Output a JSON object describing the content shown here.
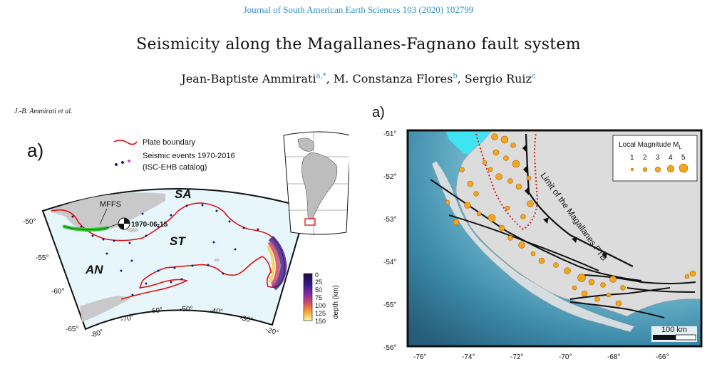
{
  "journal": "Journal of South American Earth Sciences 103 (2020) 102799",
  "title": "Seismicity along the Magallanes-Fagnano fault system",
  "authors": {
    "a1": "Jean-Baptiste Ammirati",
    "a1_sup": "a,",
    "a1_star": "*",
    "sep1": ", ",
    "a2": "M. Constanza Flores",
    "a2_sup": "b",
    "sep2": ", ",
    "a3": "Sergio Ruiz",
    "a3_sup": "c"
  },
  "running_header": "J.-B. Ammirati et al.",
  "left_figure": {
    "panel_label": "a)",
    "legend": {
      "plate_boundary": "Plate boundary",
      "events_line1": "Seismic events 1970-2016",
      "events_line2": "(ISC-EHB catalog)"
    },
    "labels": {
      "sa": "SA",
      "st": "ST",
      "an": "AN",
      "mffs": "MFFS",
      "event_date": "1970-06-15"
    },
    "lat_ticks": [
      "-50°",
      "-55°",
      "-60°",
      "-65°"
    ],
    "lon_ticks": [
      "-80°",
      "-70°",
      "-60°",
      "-50°",
      "-40°",
      "-30°",
      "-20°"
    ],
    "colorbar": {
      "ticks": [
        "0",
        "25",
        "50",
        "75",
        "100",
        "125",
        "150"
      ],
      "label": "depth (km)"
    },
    "colors": {
      "ocean": "#e6f6fb",
      "land": "#c9c9c9",
      "plate_boundary": "#e01010",
      "fault": "#22c422"
    }
  },
  "right_figure": {
    "panel_label": "a)",
    "lat_ticks": [
      "-51°",
      "-52°",
      "-53°",
      "-54°",
      "-55°",
      "-56°"
    ],
    "lon_ticks": [
      "-76°",
      "-74°",
      "-72°",
      "-70°",
      "-68°",
      "-66°"
    ],
    "ftb_label": "Limit of the Magallanes FTB",
    "legend": {
      "title": "Local Magnitude M",
      "title_sub": "L",
      "magnitudes": [
        "1",
        "2",
        "3",
        "4",
        "5"
      ]
    },
    "scale": "100 km",
    "colors": {
      "event": "#f3a51e",
      "event_edge": "#a86a00",
      "land": "#dcdcdc",
      "sea_shallow": "#aee2ee",
      "sea_deep": "#2d6e8e"
    }
  }
}
